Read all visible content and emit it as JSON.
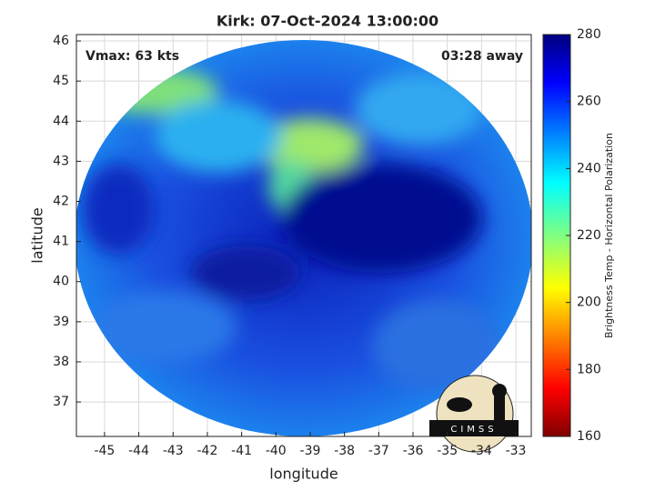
{
  "chart_data": {
    "type": "image",
    "title": "Kirk: 07-Oct-2024 13:00:00",
    "xlabel": "longitude",
    "ylabel": "latitude",
    "annotations": [
      "Vmax: 63 kts",
      "03:28 away"
    ],
    "xlim": [
      -45.82,
      -32.55
    ],
    "xticks": [
      -45,
      -44,
      -43,
      -42,
      -41,
      -40,
      -39,
      -38,
      -37,
      -36,
      -35,
      -34,
      -33
    ],
    "ylim": [
      36.14,
      46.16
    ],
    "yticks": [
      37,
      38,
      39,
      40,
      41,
      42,
      43,
      44,
      45,
      46
    ],
    "grid": true,
    "colorbar": {
      "label": "Brightness Temp - Horizontal Polarization",
      "lim": [
        160,
        280
      ],
      "ticks": [
        160,
        180,
        200,
        220,
        240,
        260,
        280
      ]
    },
    "logo": "CIMSS"
  }
}
